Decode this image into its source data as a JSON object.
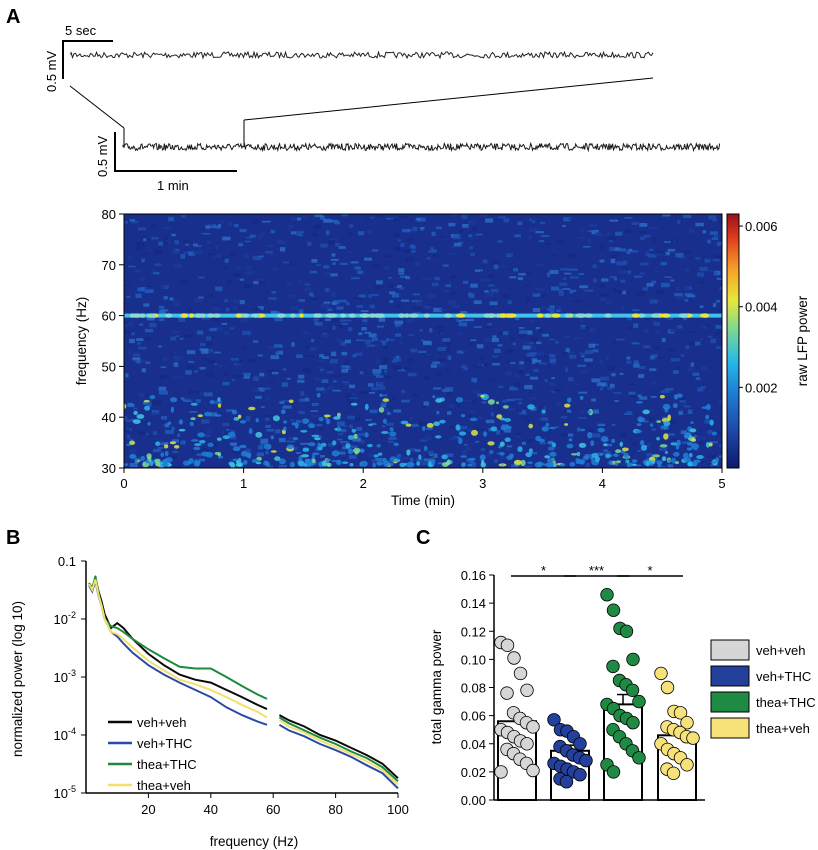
{
  "panels": {
    "a": "A",
    "b": "B",
    "c": "C"
  },
  "trace": {
    "top_time_scale": "5 sec",
    "top_volt_scale": "0.5 mV",
    "bottom_volt_scale": "0.5 mV",
    "bottom_time_scale": "1 min"
  },
  "colors": {
    "veh_veh": "#0a0a0a",
    "veh_thc": "#2a4aa8",
    "thea_thc": "#1e8a3e",
    "thea_veh": "#f2e06c",
    "dot_veh_veh": "#d6d6d6",
    "dot_veh_thc": "#23409c",
    "dot_thea_thc": "#1f8a43",
    "dot_thea_veh": "#f7e27a"
  },
  "chart_data": [
    {
      "id": "spectrogram",
      "type": "heatmap",
      "xlabel": "Time (min)",
      "ylabel": "frequency (Hz)",
      "xlim": [
        0,
        5
      ],
      "ylim": [
        30,
        80
      ],
      "x_ticks": [
        "0",
        "1",
        "2",
        "3",
        "4",
        "5"
      ],
      "y_ticks": [
        "30",
        "40",
        "50",
        "60",
        "70",
        "80"
      ],
      "line_noise_hz": 60,
      "colorbar": {
        "label": "raw LFP power",
        "range": [
          0,
          0.0063
        ],
        "ticks": [
          "0.002",
          "0.004",
          "0.006"
        ]
      }
    },
    {
      "id": "psd",
      "type": "line",
      "xlabel": "frequency (Hz)",
      "ylabel": "normalized power (log 10)",
      "xlim": [
        0,
        100
      ],
      "ylim": [
        1e-05,
        0.1
      ],
      "y_scale": "log",
      "x_ticks": [
        "20",
        "40",
        "60",
        "80",
        "100"
      ],
      "y_tick_main": [
        "0.1"
      ],
      "y_tick_bases": [
        "10",
        "10",
        "10",
        "10"
      ],
      "y_tick_exps": [
        "-2",
        "-3",
        "-4",
        "-5"
      ],
      "gap": [
        58,
        62
      ],
      "legend_position": "bottom-left",
      "x": [
        1,
        2,
        3,
        4,
        5,
        6,
        8,
        10,
        12,
        15,
        20,
        25,
        30,
        35,
        40,
        45,
        50,
        55,
        58,
        62,
        65,
        70,
        75,
        80,
        85,
        90,
        95,
        100
      ],
      "series": [
        {
          "name": "veh+veh",
          "values": [
            0.04,
            0.035,
            0.05,
            0.03,
            0.02,
            0.012,
            0.007,
            0.0085,
            0.007,
            0.0045,
            0.0025,
            0.0016,
            0.0011,
            0.0009,
            0.0008,
            0.0006,
            0.00045,
            0.00033,
            0.00028,
            0.00022,
            0.00018,
            0.00014,
            0.0001,
            8e-05,
            6e-05,
            4.5e-05,
            3.2e-05,
            1.8e-05
          ]
        },
        {
          "name": "veh+THC",
          "values": [
            0.038,
            0.03,
            0.045,
            0.025,
            0.017,
            0.01,
            0.006,
            0.005,
            0.0038,
            0.0026,
            0.0016,
            0.0011,
            0.0008,
            0.0006,
            0.00045,
            0.0003,
            0.00022,
            0.00017,
            0.00015,
            0.00015,
            0.00012,
            9.5e-05,
            7e-05,
            5.5e-05,
            4.2e-05,
            3e-05,
            2.2e-05,
            1.2e-05
          ]
        },
        {
          "name": "thea+THC",
          "values": [
            0.042,
            0.033,
            0.055,
            0.028,
            0.017,
            0.01,
            0.0075,
            0.007,
            0.006,
            0.0045,
            0.003,
            0.0021,
            0.0015,
            0.0014,
            0.0014,
            0.001,
            0.0007,
            0.0005,
            0.00042,
            0.0002,
            0.00016,
            0.00012,
            9e-05,
            7e-05,
            5.2e-05,
            4e-05,
            2.8e-05,
            1.6e-05
          ]
        },
        {
          "name": "thea+veh",
          "values": [
            0.04,
            0.032,
            0.048,
            0.026,
            0.017,
            0.01,
            0.006,
            0.0055,
            0.0045,
            0.0032,
            0.0019,
            0.0013,
            0.0009,
            0.00075,
            0.0006,
            0.00045,
            0.00033,
            0.00025,
            0.0002,
            0.00018,
            0.00014,
            0.00011,
            8e-05,
            6.2e-05,
            4.7e-05,
            3.5e-05,
            2.5e-05,
            1.4e-05
          ]
        }
      ]
    },
    {
      "id": "gamma",
      "type": "bar",
      "ylabel": "total gamma power",
      "ylim": [
        0,
        0.16
      ],
      "y_ticks": [
        "0.00",
        "0.02",
        "0.04",
        "0.06",
        "0.08",
        "0.10",
        "0.12",
        "0.14",
        "0.16"
      ],
      "legend_position": "right",
      "categories": [
        "veh+veh",
        "veh+THC",
        "thea+THC",
        "thea+veh"
      ],
      "values": [
        0.056,
        0.035,
        0.068,
        0.046
      ],
      "sem": [
        0.006,
        0.004,
        0.007,
        0.005
      ],
      "points": [
        [
          0.112,
          0.11,
          0.101,
          0.09,
          0.078,
          0.076,
          0.062,
          0.058,
          0.055,
          0.052,
          0.05,
          0.048,
          0.045,
          0.042,
          0.04,
          0.036,
          0.033,
          0.029,
          0.026,
          0.021,
          0.02
        ],
        [
          0.057,
          0.05,
          0.049,
          0.045,
          0.04,
          0.038,
          0.035,
          0.032,
          0.03,
          0.028,
          0.026,
          0.024,
          0.022,
          0.02,
          0.018,
          0.015,
          0.013
        ],
        [
          0.146,
          0.135,
          0.122,
          0.12,
          0.1,
          0.095,
          0.085,
          0.082,
          0.078,
          0.07,
          0.068,
          0.065,
          0.06,
          0.058,
          0.055,
          0.05,
          0.045,
          0.04,
          0.035,
          0.03,
          0.025,
          0.02
        ],
        [
          0.09,
          0.08,
          0.063,
          0.062,
          0.055,
          0.052,
          0.05,
          0.048,
          0.045,
          0.044,
          0.04,
          0.036,
          0.033,
          0.03,
          0.025,
          0.022,
          0.019
        ]
      ],
      "significance": [
        {
          "from": 0,
          "to": 1,
          "label": "*"
        },
        {
          "from": 1,
          "to": 2,
          "label": "***"
        },
        {
          "from": 2,
          "to": 3,
          "label": "*"
        }
      ]
    }
  ]
}
